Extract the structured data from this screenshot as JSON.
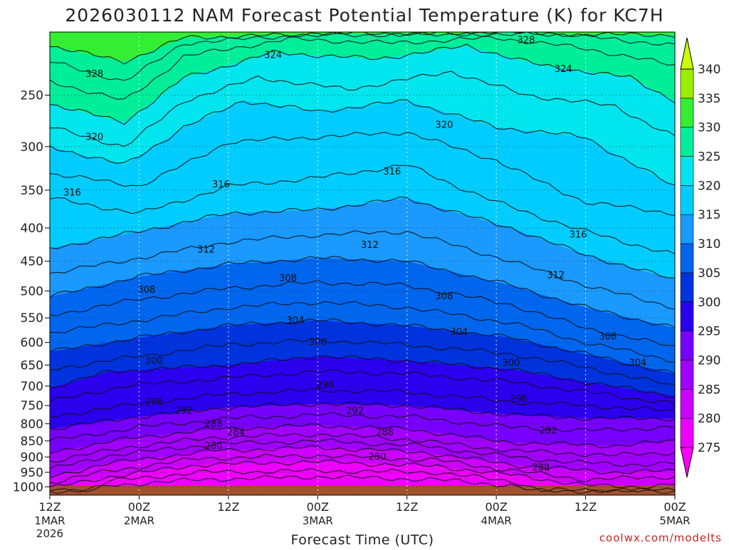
{
  "chart_data": {
    "type": "contour",
    "title": "2026030112 NAM Forecast Potential Temperature (K) for KC7H",
    "xlabel": "Forecast Time (UTC)",
    "ylabel": "",
    "credit": "coolwx.com/modelts",
    "x_ticks": [
      {
        "hour": 0,
        "label": "12Z",
        "sub": "1MAR",
        "sub2": "2026"
      },
      {
        "hour": 12,
        "label": "00Z",
        "sub": "2MAR"
      },
      {
        "hour": 24,
        "label": "12Z"
      },
      {
        "hour": 36,
        "label": "00Z",
        "sub": "3MAR"
      },
      {
        "hour": 48,
        "label": "12Z"
      },
      {
        "hour": 60,
        "label": "00Z",
        "sub": "4MAR"
      },
      {
        "hour": 72,
        "label": "12Z"
      },
      {
        "hour": 84,
        "label": "00Z",
        "sub": "5MAR"
      }
    ],
    "xlim_hours": [
      0,
      84
    ],
    "y_scale": "log",
    "y_ticks": [
      250,
      300,
      350,
      400,
      450,
      500,
      550,
      600,
      650,
      700,
      750,
      800,
      850,
      900,
      950,
      1000
    ],
    "ylim_hpa": [
      1030,
      200
    ],
    "colorbar": {
      "levels": [
        275,
        280,
        285,
        290,
        295,
        300,
        305,
        310,
        315,
        320,
        325,
        330,
        335,
        340
      ],
      "colors": [
        "#ff00ff",
        "#ee00ff",
        "#cc00ff",
        "#a000ff",
        "#7700ff",
        "#2a00ee",
        "#0033dd",
        "#0066ee",
        "#1a99ff",
        "#00ccff",
        "#00e5ee",
        "#00ee99",
        "#33ee33",
        "#99ee00",
        "#ccff00"
      ]
    },
    "series": [
      {
        "value": 276,
        "pts": [
          [
            6,
            1015
          ],
          [
            8,
            995
          ],
          [
            20,
            975
          ],
          [
            36,
            965
          ],
          [
            52,
            975
          ],
          [
            62,
            995
          ],
          [
            65,
            1015
          ]
        ]
      },
      {
        "value": 278,
        "pts": [
          [
            5,
            1010
          ],
          [
            8,
            980
          ],
          [
            20,
            950
          ],
          [
            36,
            945
          ],
          [
            52,
            950
          ],
          [
            63,
            985
          ],
          [
            66,
            1012
          ]
        ]
      },
      {
        "value": 280,
        "pts": [
          [
            0,
            1005
          ],
          [
            8,
            965
          ],
          [
            20,
            925
          ],
          [
            36,
            915
          ],
          [
            52,
            930
          ],
          [
            64,
            965
          ],
          [
            72,
            995
          ],
          [
            80,
            1000
          ],
          [
            84,
            990
          ]
        ]
      },
      {
        "value": 282,
        "pts": [
          [
            0,
            985
          ],
          [
            8,
            945
          ],
          [
            20,
            905
          ],
          [
            36,
            895
          ],
          [
            52,
            910
          ],
          [
            64,
            950
          ],
          [
            72,
            975
          ],
          [
            84,
            965
          ]
        ]
      },
      {
        "value": 284,
        "pts": [
          [
            0,
            965
          ],
          [
            8,
            920
          ],
          [
            22,
            880
          ],
          [
            36,
            870
          ],
          [
            50,
            885
          ],
          [
            64,
            930
          ],
          [
            76,
            950
          ],
          [
            84,
            945
          ]
        ]
      },
      {
        "value": 286,
        "pts": [
          [
            0,
            940
          ],
          [
            8,
            895
          ],
          [
            22,
            860
          ],
          [
            36,
            850
          ],
          [
            50,
            865
          ],
          [
            64,
            905
          ],
          [
            76,
            925
          ],
          [
            84,
            920
          ]
        ]
      },
      {
        "value": 288,
        "pts": [
          [
            0,
            915
          ],
          [
            10,
            870
          ],
          [
            22,
            840
          ],
          [
            36,
            830
          ],
          [
            48,
            845
          ],
          [
            62,
            880
          ],
          [
            76,
            895
          ],
          [
            84,
            885
          ]
        ]
      },
      {
        "value": 290,
        "pts": [
          [
            0,
            885
          ],
          [
            10,
            845
          ],
          [
            22,
            815
          ],
          [
            36,
            805
          ],
          [
            48,
            815
          ],
          [
            62,
            855
          ],
          [
            76,
            865
          ],
          [
            84,
            850
          ]
        ]
      },
      {
        "value": 292,
        "pts": [
          [
            0,
            850
          ],
          [
            12,
            810
          ],
          [
            24,
            785
          ],
          [
            36,
            775
          ],
          [
            48,
            780
          ],
          [
            62,
            810
          ],
          [
            72,
            820
          ],
          [
            84,
            810
          ]
        ]
      },
      {
        "value": 294,
        "pts": [
          [
            0,
            815
          ],
          [
            12,
            780
          ],
          [
            24,
            755
          ],
          [
            36,
            745
          ],
          [
            48,
            750
          ],
          [
            62,
            775
          ],
          [
            72,
            785
          ],
          [
            84,
            785
          ]
        ]
      },
      {
        "value": 296,
        "pts": [
          [
            0,
            780
          ],
          [
            12,
            745
          ],
          [
            24,
            720
          ],
          [
            36,
            710
          ],
          [
            48,
            715
          ],
          [
            62,
            740
          ],
          [
            72,
            750
          ],
          [
            84,
            765
          ]
        ]
      },
      {
        "value": 298,
        "pts": [
          [
            0,
            740
          ],
          [
            10,
            700
          ],
          [
            24,
            680
          ],
          [
            36,
            665
          ],
          [
            48,
            670
          ],
          [
            62,
            690
          ],
          [
            72,
            715
          ],
          [
            84,
            745
          ]
        ]
      },
      {
        "value": 300,
        "pts": [
          [
            0,
            705
          ],
          [
            8,
            665
          ],
          [
            24,
            650
          ],
          [
            36,
            630
          ],
          [
            48,
            640
          ],
          [
            62,
            660
          ],
          [
            72,
            690
          ],
          [
            84,
            725
          ]
        ]
      },
      {
        "value": 302,
        "pts": [
          [
            0,
            660
          ],
          [
            12,
            630
          ],
          [
            24,
            605
          ],
          [
            36,
            595
          ],
          [
            48,
            605
          ],
          [
            62,
            625
          ],
          [
            72,
            655
          ],
          [
            84,
            700
          ]
        ]
      },
      {
        "value": 304,
        "pts": [
          [
            0,
            620
          ],
          [
            12,
            590
          ],
          [
            24,
            565
          ],
          [
            36,
            555
          ],
          [
            48,
            565
          ],
          [
            62,
            590
          ],
          [
            72,
            625
          ],
          [
            84,
            670
          ]
        ]
      },
      {
        "value": 306,
        "pts": [
          [
            0,
            580
          ],
          [
            12,
            555
          ],
          [
            24,
            530
          ],
          [
            36,
            520
          ],
          [
            48,
            530
          ],
          [
            62,
            560
          ],
          [
            72,
            600
          ],
          [
            84,
            640
          ]
        ]
      },
      {
        "value": 308,
        "pts": [
          [
            0,
            545
          ],
          [
            12,
            515
          ],
          [
            24,
            495
          ],
          [
            36,
            485
          ],
          [
            48,
            490
          ],
          [
            62,
            525
          ],
          [
            72,
            570
          ],
          [
            84,
            610
          ]
        ]
      },
      {
        "value": 310,
        "pts": [
          [
            0,
            510
          ],
          [
            12,
            475
          ],
          [
            24,
            455
          ],
          [
            36,
            445
          ],
          [
            48,
            450
          ],
          [
            62,
            490
          ],
          [
            72,
            530
          ],
          [
            84,
            570
          ]
        ]
      },
      {
        "value": 312,
        "pts": [
          [
            0,
            470
          ],
          [
            12,
            445
          ],
          [
            24,
            420
          ],
          [
            36,
            410
          ],
          [
            48,
            405
          ],
          [
            62,
            450
          ],
          [
            72,
            490
          ],
          [
            84,
            530
          ]
        ]
      },
      {
        "value": 314,
        "pts": [
          [
            0,
            430
          ],
          [
            12,
            405
          ],
          [
            24,
            380
          ],
          [
            36,
            375
          ],
          [
            48,
            360
          ],
          [
            62,
            400
          ],
          [
            72,
            440
          ],
          [
            84,
            480
          ]
        ]
      },
      {
        "value": 316,
        "pts": [
          [
            0,
            360
          ],
          [
            12,
            380
          ],
          [
            24,
            345
          ],
          [
            36,
            335
          ],
          [
            48,
            320
          ],
          [
            60,
            365
          ],
          [
            72,
            405
          ],
          [
            84,
            440
          ]
        ]
      },
      {
        "value": 318,
        "pts": [
          [
            0,
            330
          ],
          [
            12,
            345
          ],
          [
            24,
            295
          ],
          [
            36,
            290
          ],
          [
            48,
            285
          ],
          [
            60,
            315
          ],
          [
            72,
            365
          ],
          [
            84,
            380
          ]
        ]
      },
      {
        "value": 320,
        "pts": [
          [
            0,
            300
          ],
          [
            10,
            320
          ],
          [
            18,
            280
          ],
          [
            26,
            255
          ],
          [
            36,
            265
          ],
          [
            48,
            255
          ],
          [
            60,
            280
          ],
          [
            72,
            290
          ],
          [
            84,
            345
          ]
        ]
      },
      {
        "value": 322,
        "pts": [
          [
            0,
            280
          ],
          [
            10,
            300
          ],
          [
            18,
            255
          ],
          [
            28,
            235
          ],
          [
            40,
            245
          ],
          [
            54,
            230
          ],
          [
            64,
            250
          ],
          [
            76,
            260
          ],
          [
            84,
            290
          ]
        ]
      },
      {
        "value": 324,
        "pts": [
          [
            0,
            258
          ],
          [
            10,
            275
          ],
          [
            18,
            235
          ],
          [
            30,
            215
          ],
          [
            44,
            220
          ],
          [
            56,
            210
          ],
          [
            66,
            225
          ],
          [
            78,
            235
          ],
          [
            84,
            255
          ]
        ]
      },
      {
        "value": 326,
        "pts": [
          [
            0,
            238
          ],
          [
            10,
            255
          ],
          [
            18,
            218
          ],
          [
            32,
            205
          ],
          [
            46,
            208
          ],
          [
            60,
            204
          ],
          [
            72,
            212
          ],
          [
            84,
            225
          ]
        ]
      },
      {
        "value": 328,
        "pts": [
          [
            0,
            222
          ],
          [
            10,
            238
          ],
          [
            18,
            208
          ],
          [
            34,
            202
          ],
          [
            50,
            202
          ],
          [
            64,
            200
          ],
          [
            76,
            205
          ],
          [
            84,
            210
          ]
        ]
      },
      {
        "value": 330,
        "pts": [
          [
            0,
            210
          ],
          [
            10,
            222
          ],
          [
            18,
            204
          ],
          [
            40,
            201
          ],
          [
            84,
            202
          ]
        ]
      }
    ],
    "contour_labels": [
      {
        "text": "328",
        "hour": 6,
        "p": 232
      },
      {
        "text": "324",
        "hour": 30,
        "p": 217
      },
      {
        "text": "328",
        "hour": 64,
        "p": 206
      },
      {
        "text": "324",
        "hour": 69,
        "p": 228
      },
      {
        "text": "320",
        "hour": 6,
        "p": 290
      },
      {
        "text": "320",
        "hour": 53,
        "p": 278
      },
      {
        "text": "316",
        "hour": 3,
        "p": 353
      },
      {
        "text": "316",
        "hour": 23,
        "p": 343
      },
      {
        "text": "316",
        "hour": 46,
        "p": 328
      },
      {
        "text": "316",
        "hour": 71,
        "p": 410
      },
      {
        "text": "312",
        "hour": 21,
        "p": 432
      },
      {
        "text": "312",
        "hour": 43,
        "p": 425
      },
      {
        "text": "312",
        "hour": 68,
        "p": 473
      },
      {
        "text": "308",
        "hour": 13,
        "p": 498
      },
      {
        "text": "308",
        "hour": 32,
        "p": 478
      },
      {
        "text": "308",
        "hour": 53,
        "p": 510
      },
      {
        "text": "308",
        "hour": 75,
        "p": 588
      },
      {
        "text": "304",
        "hour": 33,
        "p": 555
      },
      {
        "text": "304",
        "hour": 55,
        "p": 578
      },
      {
        "text": "304",
        "hour": 79,
        "p": 645
      },
      {
        "text": "300",
        "hour": 14,
        "p": 640
      },
      {
        "text": "300",
        "hour": 36,
        "p": 600
      },
      {
        "text": "300",
        "hour": 62,
        "p": 645
      },
      {
        "text": "296",
        "hour": 14,
        "p": 740
      },
      {
        "text": "296",
        "hour": 37,
        "p": 698
      },
      {
        "text": "296",
        "hour": 63,
        "p": 733
      },
      {
        "text": "292",
        "hour": 18,
        "p": 765
      },
      {
        "text": "292",
        "hour": 41,
        "p": 765
      },
      {
        "text": "292",
        "hour": 67,
        "p": 820
      },
      {
        "text": "288",
        "hour": 22,
        "p": 800
      },
      {
        "text": "288",
        "hour": 45,
        "p": 825
      },
      {
        "text": "288",
        "hour": 66,
        "p": 935
      },
      {
        "text": "284",
        "hour": 25,
        "p": 825
      },
      {
        "text": "280",
        "hour": 22,
        "p": 865
      },
      {
        "text": "280",
        "hour": 44,
        "p": 900
      }
    ]
  }
}
